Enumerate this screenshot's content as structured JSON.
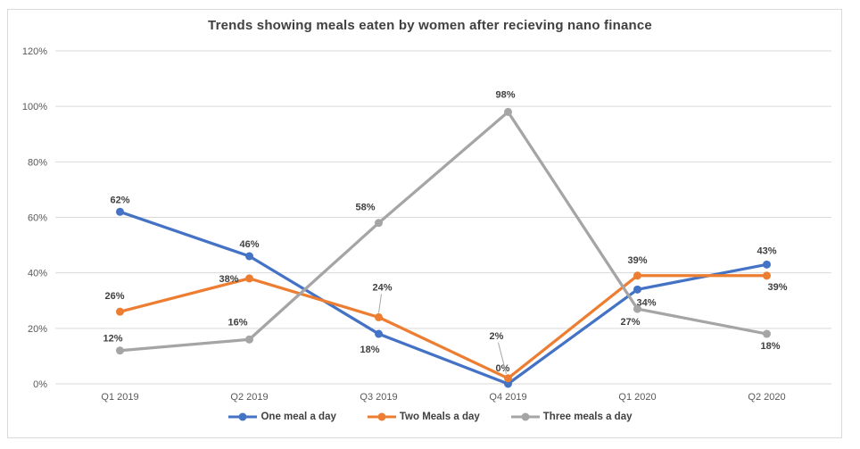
{
  "chart_data": {
    "type": "line",
    "title": "Trends showing meals eaten by women after recieving nano finance",
    "categories": [
      "Q1 2019",
      "Q2 2019",
      "Q3 2019",
      "Q4 2019",
      "Q1 2020",
      "Q2 2020"
    ],
    "series": [
      {
        "name": "One meal a day",
        "color": "#4472C4",
        "values": [
          62,
          46,
          18,
          0,
          34,
          43
        ]
      },
      {
        "name": "Two Meals a day",
        "color": "#ED7D31",
        "values": [
          26,
          38,
          24,
          2,
          39,
          39
        ]
      },
      {
        "name": "Three meals a day",
        "color": "#A5A5A5",
        "values": [
          12,
          16,
          58,
          98,
          27,
          18
        ]
      }
    ],
    "xlabel": "",
    "ylabel": "",
    "ylim": [
      0,
      120
    ],
    "ytick_step": 20,
    "ytick_format": "percent",
    "grid": "horizontal",
    "legend_position": "bottom",
    "data_labels": true
  },
  "colors": {
    "grid": "#d9d9d9",
    "axis_text": "#595959",
    "label_text": "#404040",
    "title_text": "#404040",
    "frame_border": "#d9d9d9",
    "leader": "#a6a6a6"
  }
}
